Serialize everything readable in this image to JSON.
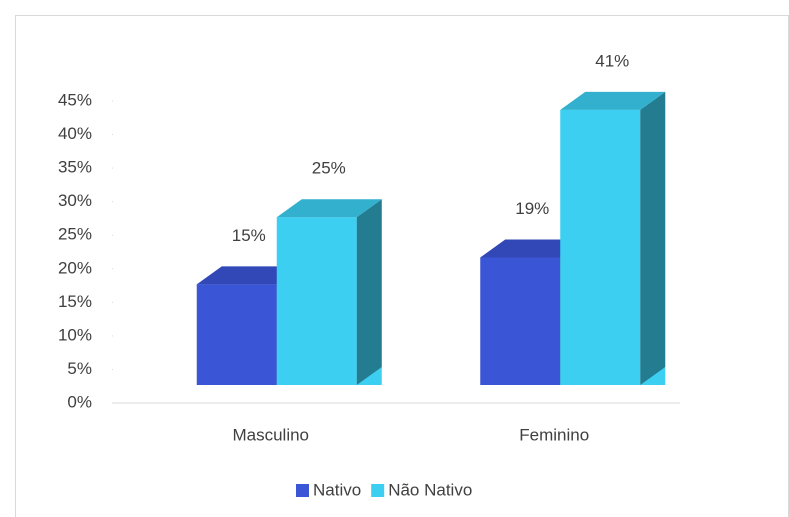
{
  "chart_data": {
    "type": "bar3d",
    "categories": [
      "Masculino",
      "Feminino"
    ],
    "series": [
      {
        "name": "Nativo",
        "color": "#3a55d6",
        "values": [
          15,
          19
        ],
        "value_labels": [
          "15%",
          "19%"
        ]
      },
      {
        "name": "Não Nativo",
        "color": "#3ccff2",
        "values": [
          25,
          41
        ],
        "value_labels": [
          "25%",
          "41%"
        ]
      }
    ],
    "ylim": [
      0,
      45
    ],
    "yticks": [
      {
        "value": 0,
        "label": "0%"
      },
      {
        "value": 5,
        "label": "5%"
      },
      {
        "value": 10,
        "label": "10%"
      },
      {
        "value": 15,
        "label": "15%"
      },
      {
        "value": 20,
        "label": "20%"
      },
      {
        "value": 25,
        "label": "25%"
      },
      {
        "value": 30,
        "label": "30%"
      },
      {
        "value": 35,
        "label": "35%"
      },
      {
        "value": 40,
        "label": "40%"
      },
      {
        "value": 45,
        "label": "45%"
      }
    ],
    "legend": "bottom"
  }
}
